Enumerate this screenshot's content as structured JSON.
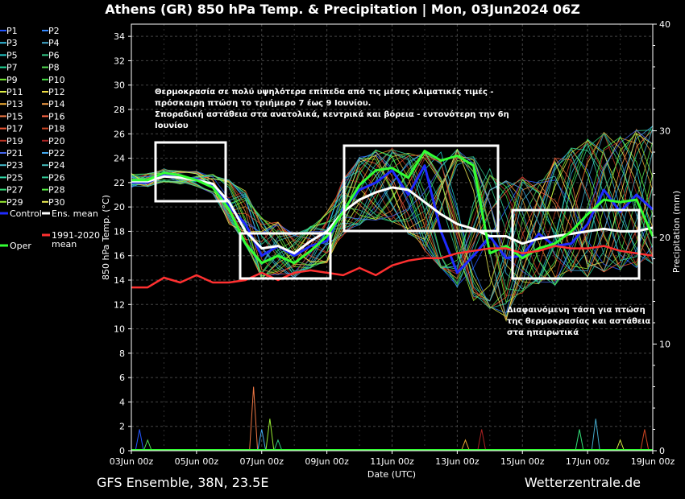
{
  "chart_data": {
    "type": "line",
    "title": "Athens  (GR)  850 hPa Temp. & Precipitation | Mon, 03Jun2024 06Z",
    "xlabel": "Date (UTC)",
    "ylabel": "850 hPa Temp. (°C)",
    "y2label": "Precipitation (mm)",
    "ylim": [
      0,
      35
    ],
    "y2lim": [
      0,
      40
    ],
    "xlim_hours": [
      0,
      384
    ],
    "grid": true,
    "yticks": [
      0,
      2,
      4,
      6,
      8,
      10,
      12,
      14,
      16,
      18,
      20,
      22,
      24,
      26,
      28,
      30,
      32,
      34
    ],
    "y2ticks": [
      0,
      10,
      20,
      30,
      40
    ],
    "xticks": [
      {
        "h": 0,
        "label": "03Jun 00z"
      },
      {
        "h": 48,
        "label": "05Jun 00z"
      },
      {
        "h": 96,
        "label": "07Jun 00z"
      },
      {
        "h": 144,
        "label": "09Jun 00z"
      },
      {
        "h": 192,
        "label": "11Jun 00z"
      },
      {
        "h": 240,
        "label": "13Jun 00z"
      },
      {
        "h": 288,
        "label": "15Jun 00z"
      },
      {
        "h": 336,
        "label": "17Jun 00z"
      },
      {
        "h": 384,
        "label": "19Jun 00z"
      }
    ],
    "hours": [
      12,
      24,
      36,
      48,
      60,
      72,
      84,
      96,
      108,
      120,
      132,
      144,
      156,
      168,
      180,
      192,
      204,
      216,
      228,
      240,
      252,
      264,
      276,
      288,
      300,
      312,
      324,
      336,
      348,
      360,
      372,
      384
    ],
    "series": [
      {
        "name": "Control",
        "color": "#1f2bff",
        "width": 3,
        "values": [
          22.0,
          22.6,
          22.4,
          22.3,
          21.8,
          20.0,
          18.6,
          16.0,
          16.8,
          16.0,
          16.8,
          17.2,
          19.8,
          21.4,
          22.0,
          23.0,
          21.0,
          23.4,
          18.0,
          14.6,
          16.0,
          17.6,
          15.8,
          16.0,
          17.8,
          16.8,
          17.0,
          18.6,
          21.4,
          19.6,
          21.0,
          19.8
        ]
      },
      {
        "name": "Ens. mean",
        "color": "#ffffff",
        "width": 3,
        "values": [
          22.1,
          22.5,
          22.4,
          22.2,
          21.9,
          20.4,
          18.0,
          16.6,
          16.8,
          16.2,
          17.2,
          18.0,
          19.6,
          20.6,
          21.2,
          21.6,
          21.4,
          20.4,
          19.4,
          18.6,
          18.2,
          17.6,
          17.6,
          17.0,
          17.4,
          17.6,
          17.8,
          18.0,
          18.2,
          18.0,
          18.0,
          18.3
        ]
      },
      {
        "name": "Oper",
        "color": "#33ff33",
        "width": 3,
        "values": [
          22.2,
          22.8,
          22.6,
          22.2,
          21.6,
          19.8,
          17.0,
          15.4,
          16.0,
          15.4,
          16.4,
          17.6,
          19.6,
          21.8,
          23.0,
          23.2,
          22.4,
          24.6,
          23.8,
          24.2,
          23.4,
          16.2,
          16.8,
          15.8,
          16.6,
          17.0,
          18.0,
          19.4,
          20.6,
          20.4,
          20.6,
          17.6
        ]
      },
      {
        "name": "1991-2020 mean",
        "color": "#ff3030",
        "width": 2.5,
        "values": [
          13.4,
          14.2,
          13.8,
          14.4,
          13.8,
          13.8,
          14.0,
          14.6,
          14.0,
          14.6,
          14.8,
          14.6,
          14.4,
          15.0,
          14.4,
          15.2,
          15.6,
          15.8,
          15.8,
          16.2,
          16.4,
          16.6,
          16.6,
          16.2,
          16.4,
          16.8,
          16.6,
          16.6,
          16.8,
          16.4,
          16.2,
          16.0
        ]
      }
    ],
    "members": [
      "P1",
      "P2",
      "P3",
      "P4",
      "P5",
      "P6",
      "P7",
      "P8",
      "P9",
      "P10",
      "P11",
      "P12",
      "P13",
      "P14",
      "P15",
      "P16",
      "P17",
      "P18",
      "P19",
      "P20",
      "P21",
      "P22",
      "P23",
      "P24",
      "P25",
      "P26",
      "P27",
      "P28",
      "P29",
      "P30"
    ],
    "member_colors": [
      "#2255ff",
      "#3388ff",
      "#33bbdd",
      "#44aacc",
      "#22cccc",
      "#33cc88",
      "#22dd99",
      "#55dd55",
      "#77ee33",
      "#44dd44",
      "#ddee44",
      "#eedd44",
      "#eeaa33",
      "#ee9944",
      "#ee7744",
      "#ff6644",
      "#ee5533",
      "#cc4422",
      "#bb3322",
      "#aa2222",
      "#4466ee",
      "#44aaee",
      "#44bbcc",
      "#44bbbb",
      "#33ddaa",
      "#33cc99",
      "#33dd77",
      "#55ee44",
      "#99ee33",
      "#eeee55"
    ],
    "member_spread": {
      "low": [
        21.6,
        22.0,
        21.8,
        21.6,
        21.0,
        18.4,
        16.6,
        13.8,
        14.2,
        14.0,
        14.8,
        15.2,
        17.4,
        18.2,
        18.6,
        18.4,
        17.4,
        15.6,
        14.4,
        12.4,
        11.6,
        11.0,
        10.0,
        12.4,
        13.2,
        13.0,
        14.0,
        13.6,
        14.0,
        14.2,
        14.4,
        14.6
      ],
      "high": [
        22.8,
        23.2,
        23.0,
        23.0,
        22.8,
        22.4,
        21.6,
        19.4,
        19.0,
        18.0,
        18.6,
        19.8,
        22.6,
        24.4,
        25.0,
        25.2,
        24.8,
        25.0,
        25.2,
        25.4,
        24.8,
        23.8,
        22.8,
        23.0,
        22.6,
        24.6,
        25.4,
        26.2,
        26.8,
        26.4,
        27.0,
        27.4
      ]
    },
    "precip_hours": [
      6,
      12,
      90,
      96,
      102,
      108,
      246,
      258,
      330,
      342,
      360,
      378
    ],
    "precip_values": [
      2.0,
      1.0,
      6.0,
      2.0,
      3.0,
      1.0,
      1.0,
      2.0,
      2.0,
      3.0,
      1.0,
      2.0
    ],
    "legend_position": "left",
    "annotations": [
      "Θερμοκρασία σε πολύ υψηλότερα επίπεδα από τις μέσες κλιματικές τιμές -",
      "πρόσκαιρη πτώση το τριήμερο 7 έως 9 Ιουνίου.",
      "Σποραδική αστάθεια στα ανατολικά, κεντρικά και βόρεια - εντονότερη την 6η",
      "Ιουνίου",
      "Διαφαινόμενη τάση για πτώση",
      "της θερμοκρασίας και αστάθεια",
      "στα ηπειρωτικά"
    ]
  },
  "footer": {
    "left": "GFS Ensemble, 38N, 23.5E",
    "right": "Wetterzentrale.de"
  },
  "colors": {
    "background": "#000000",
    "grid": "#444444",
    "axis": "#ffffff",
    "box": "#ffffff"
  }
}
